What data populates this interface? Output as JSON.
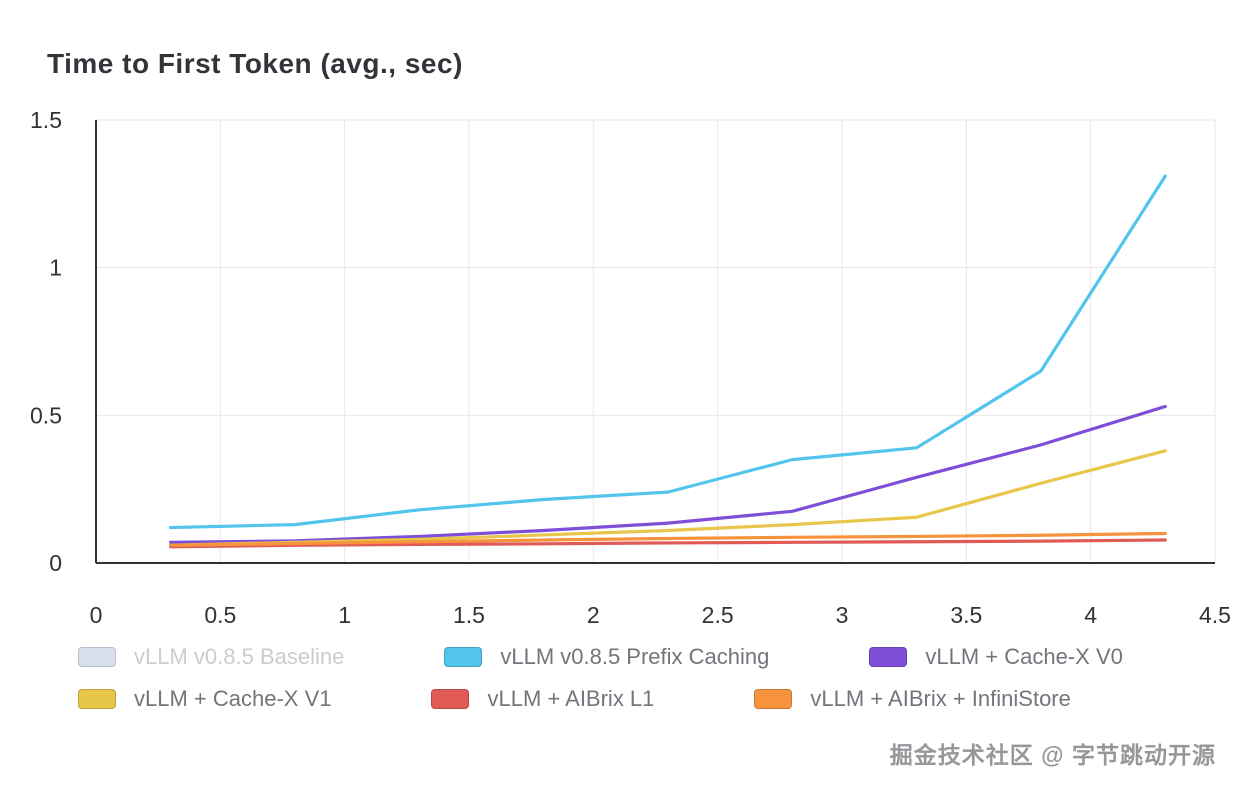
{
  "watermark": "掘金技术社区 @ 字节跳动开源",
  "colors": {
    "axis": "#333333",
    "gridline": "#e7e7e7",
    "tick_label": "#333333",
    "legend_text": "#74747c",
    "legend_text_disabled": "#cccccc"
  },
  "chart_data": {
    "type": "line",
    "title": "Time to First Token (avg., sec)",
    "xlabel": "",
    "ylabel": "",
    "xlim": [
      0,
      4.5
    ],
    "ylim": [
      0,
      1.5
    ],
    "x_ticks": [
      0,
      0.5,
      1,
      1.5,
      2,
      2.5,
      3,
      3.5,
      4,
      4.5
    ],
    "x_tick_labels": [
      "0",
      "0.5",
      "1",
      "1.5",
      "2",
      "2.5",
      "3",
      "3.5",
      "4",
      "4.5"
    ],
    "y_ticks": [
      0,
      0.5,
      1,
      1.5
    ],
    "y_tick_labels": [
      "0",
      "0.5",
      "1",
      "1.5"
    ],
    "grid": true,
    "legend_position": "bottom",
    "x": [
      0.3,
      0.8,
      1.3,
      1.8,
      2.3,
      2.8,
      3.3,
      3.8,
      4.3
    ],
    "series": [
      {
        "name": "vLLM v0.8.5 Baseline",
        "color": "#d9deeb",
        "hidden": true,
        "values": []
      },
      {
        "name": "vLLM v0.8.5 Prefix Caching",
        "color": "#52c5ec",
        "hidden": false,
        "values": [
          0.12,
          0.13,
          0.18,
          0.215,
          0.24,
          0.35,
          0.39,
          0.65,
          1.31
        ]
      },
      {
        "name": "vLLM + Cache-X V0",
        "color": "#7d4fd8",
        "hidden": false,
        "values": [
          0.07,
          0.075,
          0.09,
          0.11,
          0.135,
          0.175,
          0.29,
          0.4,
          0.53
        ]
      },
      {
        "name": "vLLM + Cache-X V1",
        "color": "#e7c64a",
        "hidden": false,
        "values": [
          0.06,
          0.07,
          0.08,
          0.095,
          0.11,
          0.13,
          0.155,
          0.27,
          0.38
        ]
      },
      {
        "name": "vLLM + AIBrix L1",
        "color": "#e15b56",
        "hidden": false,
        "values": [
          0.055,
          0.06,
          0.063,
          0.065,
          0.068,
          0.07,
          0.072,
          0.074,
          0.078
        ]
      },
      {
        "name": "vLLM + AIBrix + InfiniStore",
        "color": "#f6933c",
        "hidden": false,
        "values": [
          0.06,
          0.066,
          0.072,
          0.078,
          0.083,
          0.087,
          0.09,
          0.094,
          0.1
        ]
      }
    ]
  }
}
